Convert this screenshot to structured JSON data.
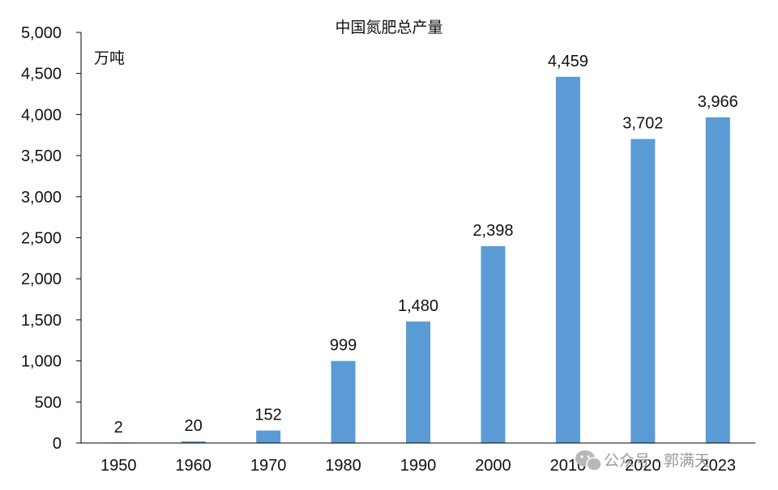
{
  "chart_data": {
    "type": "bar",
    "title": "中国氮肥总产量",
    "unit_label": "万吨",
    "categories": [
      "1950",
      "1960",
      "1970",
      "1980",
      "1990",
      "2000",
      "2010",
      "2020",
      "2023"
    ],
    "values": [
      2,
      20,
      152,
      999,
      1480,
      2398,
      4459,
      3702,
      3966
    ],
    "value_labels": [
      "2",
      "20",
      "152",
      "999",
      "1,480",
      "2,398",
      "4,459",
      "3,702",
      "3,966"
    ],
    "ylim": [
      0,
      5000
    ],
    "yticks": [
      0,
      500,
      1000,
      1500,
      2000,
      2500,
      3000,
      3500,
      4000,
      4500,
      5000
    ],
    "ytick_labels": [
      "0",
      "500",
      "1,000",
      "1,500",
      "2,000",
      "2,500",
      "3,000",
      "3,500",
      "4,000",
      "4,500",
      "5,000"
    ],
    "bar_color": "#5b9bd5",
    "grid": false,
    "legend": "none"
  },
  "watermark": {
    "text": "公众号 · 郭满天",
    "icon": "wechat-icon"
  }
}
